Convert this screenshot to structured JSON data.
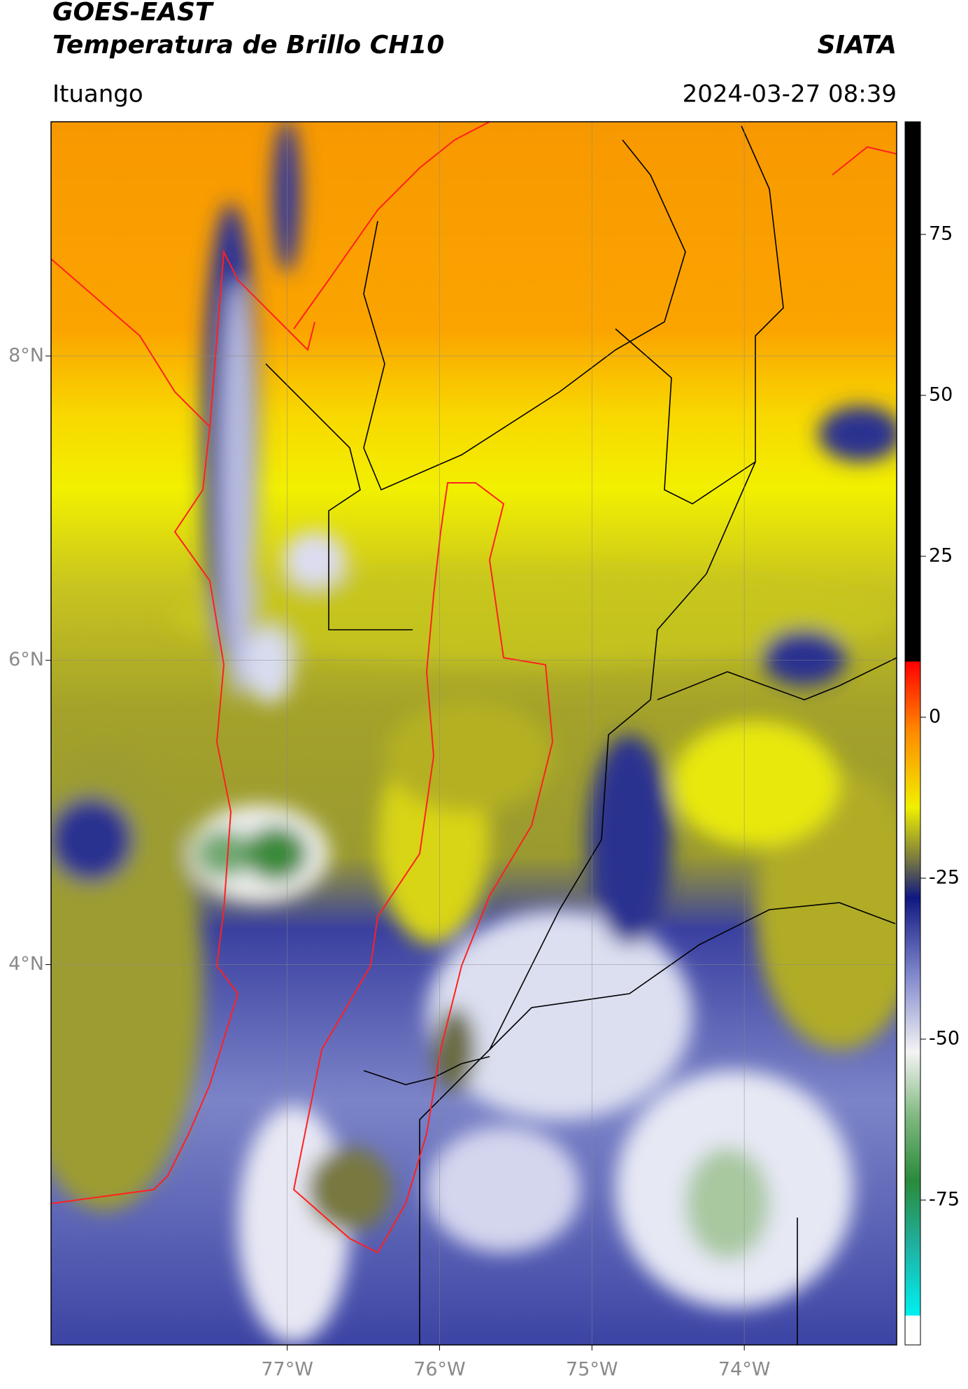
{
  "header": {
    "title": "GOES-EAST",
    "subtitle": "Temperatura de Brillo CH10",
    "source": "SIATA",
    "location": "Ituango",
    "timestamp": "2024-03-27 08:39"
  },
  "map": {
    "xlim": [
      -78.55,
      -73.0
    ],
    "ylim": [
      1.5,
      9.54
    ],
    "grid": true,
    "xticks": [
      {
        "value": -77,
        "label": "77°W"
      },
      {
        "value": -76,
        "label": "76°W"
      },
      {
        "value": -75,
        "label": "75°W"
      },
      {
        "value": -74,
        "label": "74°W"
      }
    ],
    "yticks": [
      {
        "value": 4,
        "label": "4°N"
      },
      {
        "value": 6,
        "label": "6°N"
      },
      {
        "value": 8,
        "label": "8°N"
      }
    ]
  },
  "colorbar": {
    "lim": [
      -97.5,
      92.5
    ],
    "ticks": [
      75,
      50,
      25,
      0,
      -25,
      -50,
      -75
    ],
    "colors": [
      {
        "value": -97.5,
        "color": "#ffffff"
      },
      {
        "value": -93,
        "color": "#ffffff"
      },
      {
        "value": -92.9,
        "color": "#00f0f0"
      },
      {
        "value": -82,
        "color": "#20b0a0"
      },
      {
        "value": -72,
        "color": "#2a8a3a"
      },
      {
        "value": -62,
        "color": "#80b880"
      },
      {
        "value": -52,
        "color": "#f4f4f4"
      },
      {
        "value": -40,
        "color": "#8088cc"
      },
      {
        "value": -28,
        "color": "#101880"
      },
      {
        "value": -22,
        "color": "#7a7a40"
      },
      {
        "value": -14,
        "color": "#f0f000"
      },
      {
        "value": -2,
        "color": "#ff8800"
      },
      {
        "value": 8.6,
        "color": "#ff0000"
      },
      {
        "value": 8.7,
        "color": "#000000"
      },
      {
        "value": 92.5,
        "color": "#000000"
      }
    ]
  }
}
